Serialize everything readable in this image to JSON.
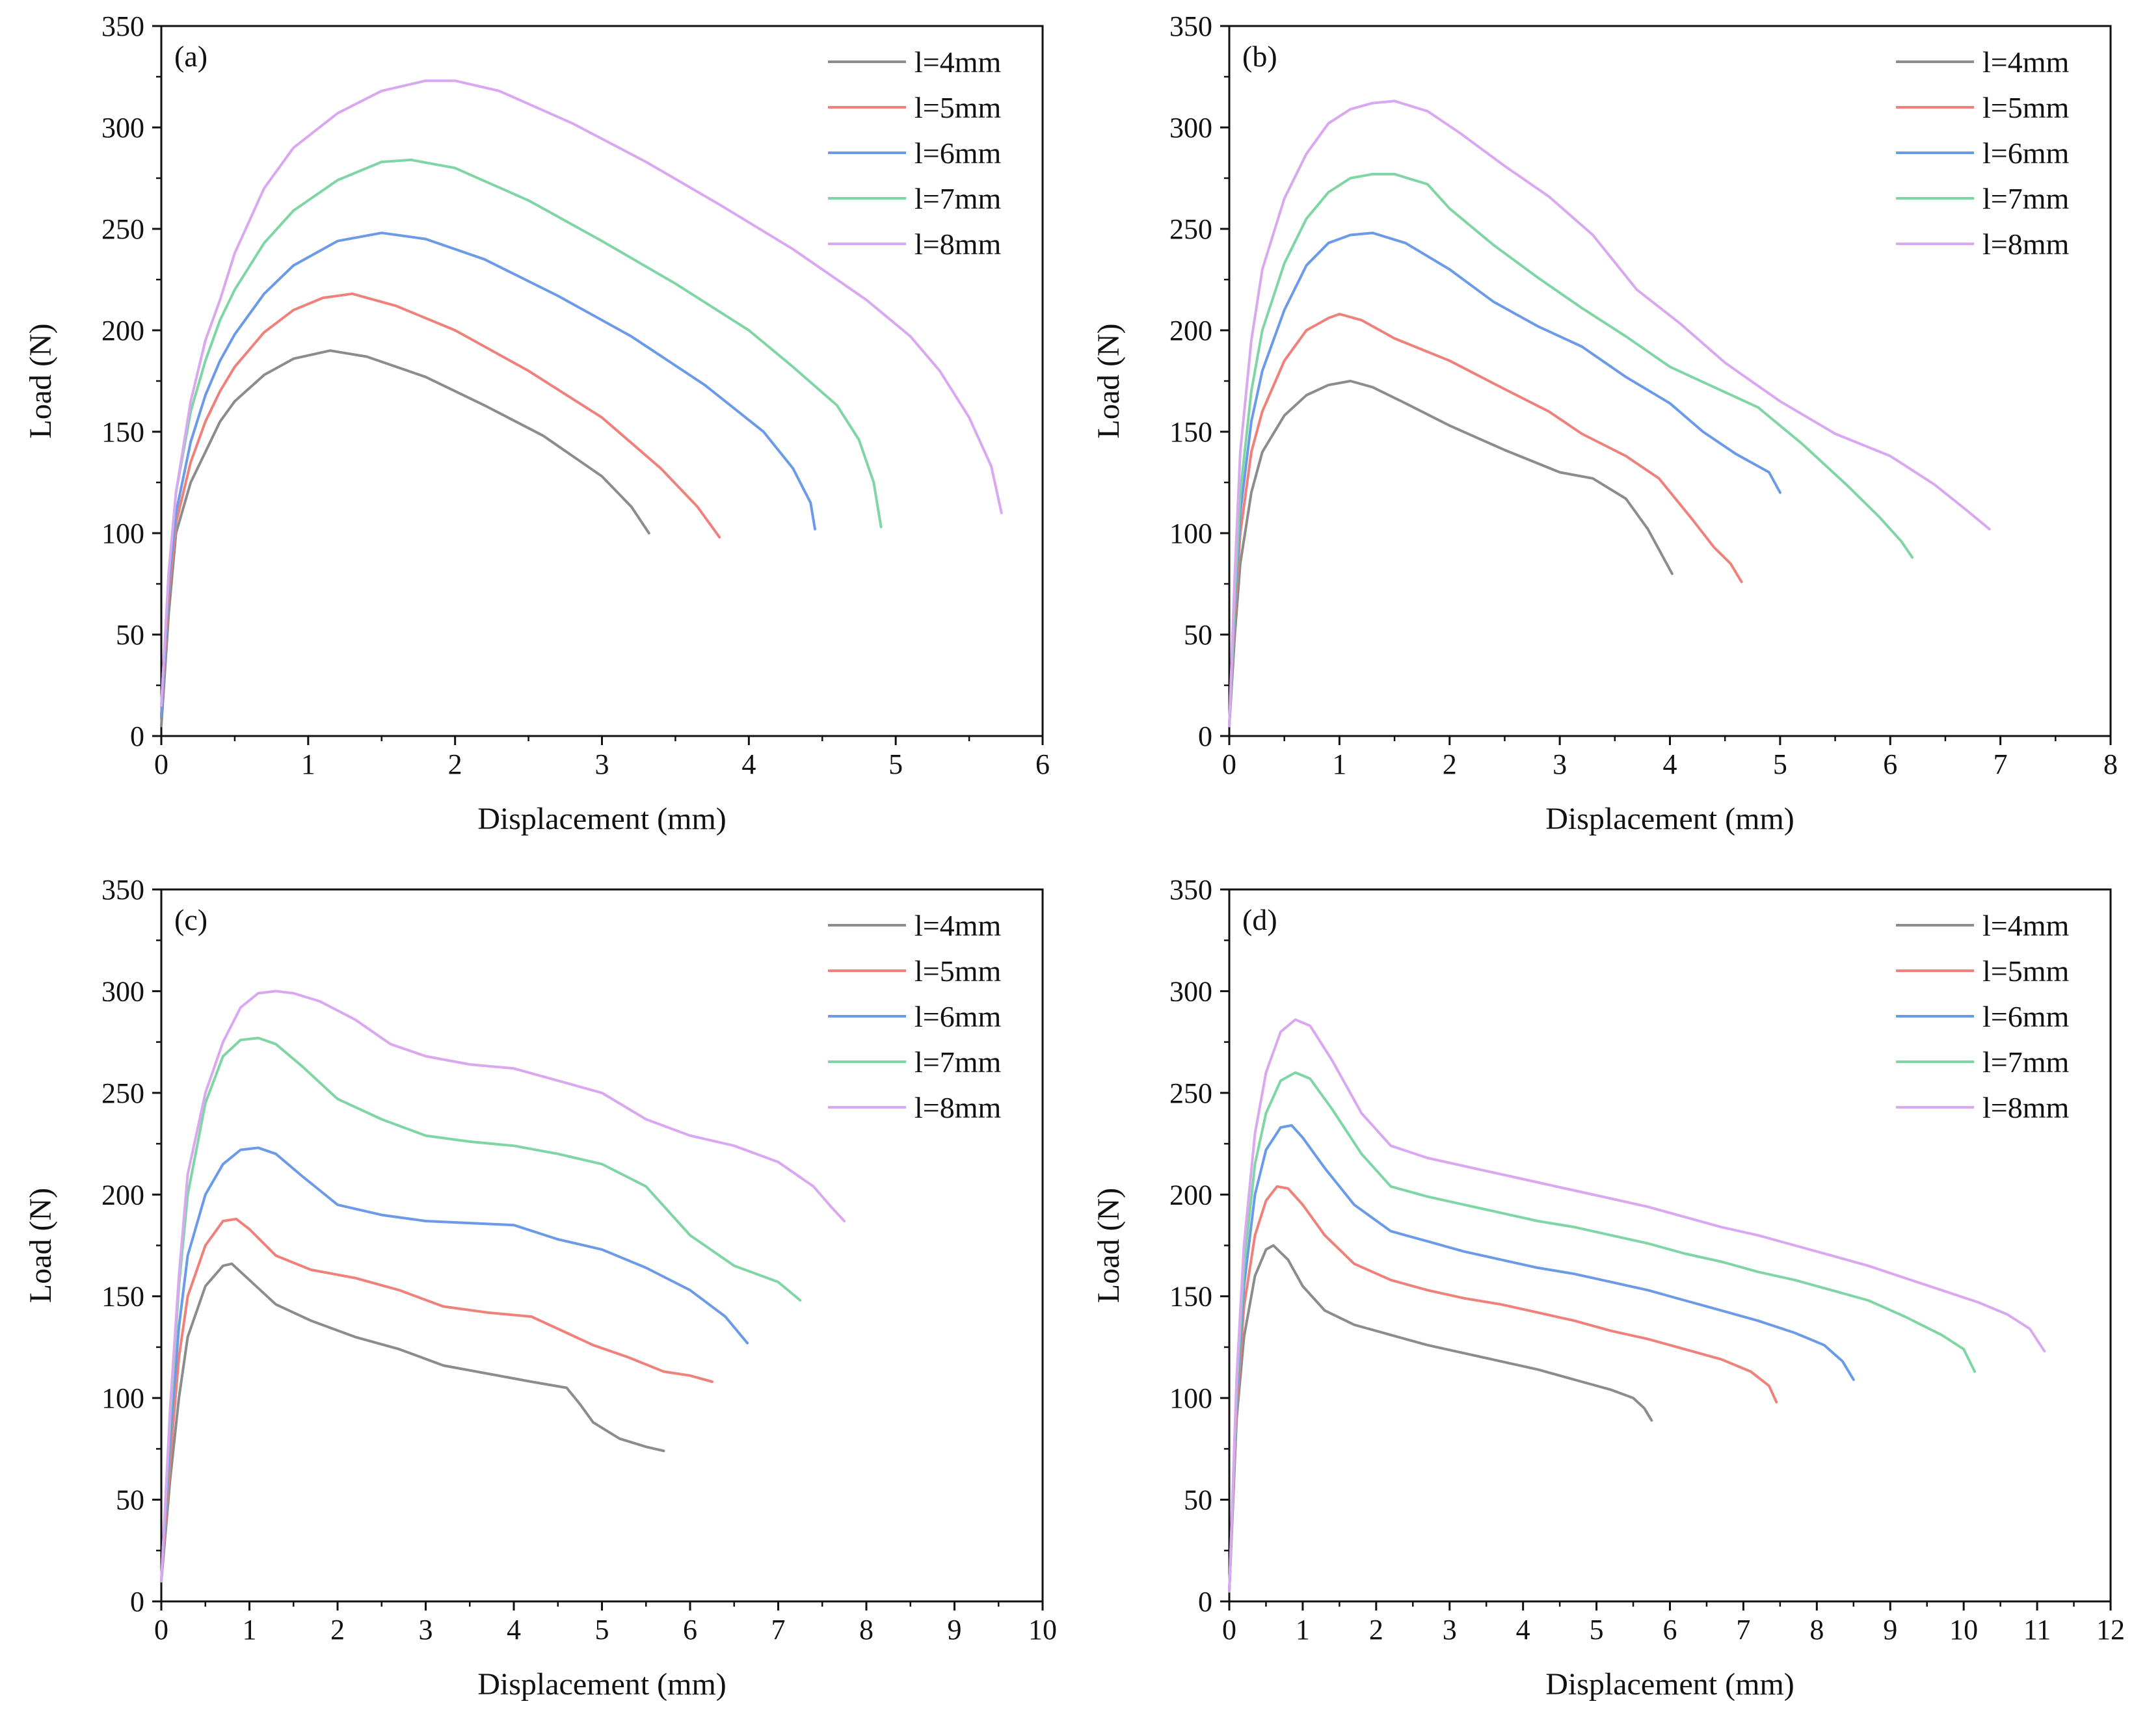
{
  "legend_entries": [
    "l=4mm",
    "l=5mm",
    "l=6mm",
    "l=7mm",
    "l=8mm"
  ],
  "colors": {
    "l=4mm": "#8c8c8c",
    "l=5mm": "#f0807a",
    "l=6mm": "#6a9ae8",
    "l=7mm": "#7fd6a4",
    "l=8mm": "#d9a8f0"
  },
  "chart_data": [
    {
      "type": "line",
      "panel_label": "(a)",
      "xlabel": "Displacement (mm)",
      "ylabel": "Load (N)",
      "xlim": [
        0,
        6
      ],
      "ylim": [
        0,
        350
      ],
      "xticks": [
        0,
        1,
        2,
        3,
        4,
        5,
        6
      ],
      "yticks": [
        0,
        50,
        100,
        150,
        200,
        250,
        300,
        350
      ],
      "legend_position": "top-right",
      "grid": false,
      "series": [
        {
          "name": "l=4mm",
          "x": [
            0,
            0.05,
            0.1,
            0.2,
            0.3,
            0.4,
            0.5,
            0.7,
            0.9,
            1.15,
            1.4,
            1.8,
            2.2,
            2.6,
            3.0,
            3.2,
            3.32
          ],
          "y": [
            5,
            60,
            100,
            125,
            140,
            155,
            165,
            178,
            186,
            190,
            187,
            177,
            163,
            148,
            128,
            113,
            100
          ]
        },
        {
          "name": "l=5mm",
          "x": [
            0,
            0.05,
            0.1,
            0.2,
            0.3,
            0.4,
            0.5,
            0.7,
            0.9,
            1.1,
            1.3,
            1.6,
            2.0,
            2.5,
            3.0,
            3.4,
            3.65,
            3.8
          ],
          "y": [
            10,
            70,
            105,
            135,
            155,
            170,
            182,
            199,
            210,
            216,
            218,
            212,
            200,
            180,
            157,
            132,
            113,
            98
          ]
        },
        {
          "name": "l=6mm",
          "x": [
            0,
            0.05,
            0.1,
            0.2,
            0.3,
            0.4,
            0.5,
            0.7,
            0.9,
            1.2,
            1.5,
            1.8,
            2.2,
            2.7,
            3.2,
            3.7,
            4.1,
            4.3,
            4.42,
            4.45
          ],
          "y": [
            10,
            75,
            110,
            145,
            168,
            185,
            198,
            218,
            232,
            244,
            248,
            245,
            235,
            217,
            197,
            173,
            150,
            132,
            115,
            102
          ]
        },
        {
          "name": "l=7mm",
          "x": [
            0,
            0.05,
            0.1,
            0.2,
            0.3,
            0.4,
            0.5,
            0.7,
            0.9,
            1.2,
            1.5,
            1.7,
            2.0,
            2.5,
            3.0,
            3.5,
            4.0,
            4.3,
            4.6,
            4.75,
            4.85,
            4.9
          ],
          "y": [
            15,
            80,
            120,
            160,
            185,
            205,
            220,
            243,
            259,
            274,
            283,
            284,
            280,
            264,
            244,
            223,
            200,
            182,
            163,
            146,
            125,
            103
          ]
        },
        {
          "name": "l=8mm",
          "x": [
            0,
            0.05,
            0.1,
            0.2,
            0.3,
            0.4,
            0.5,
            0.7,
            0.9,
            1.2,
            1.5,
            1.8,
            2.0,
            2.3,
            2.8,
            3.3,
            3.8,
            4.3,
            4.8,
            5.1,
            5.3,
            5.5,
            5.65,
            5.72
          ],
          "y": [
            15,
            80,
            120,
            165,
            195,
            215,
            238,
            270,
            290,
            307,
            318,
            323,
            323,
            318,
            302,
            283,
            262,
            240,
            215,
            197,
            180,
            157,
            133,
            110
          ]
        }
      ]
    },
    {
      "type": "line",
      "panel_label": "(b)",
      "xlabel": "Displacement (mm)",
      "ylabel": "Load (N)",
      "xlim": [
        0,
        8
      ],
      "ylim": [
        0,
        350
      ],
      "xticks": [
        0,
        1,
        2,
        3,
        4,
        5,
        6,
        7,
        8
      ],
      "yticks": [
        0,
        50,
        100,
        150,
        200,
        250,
        300,
        350
      ],
      "legend_position": "top-right",
      "grid": false,
      "series": [
        {
          "name": "l=4mm",
          "x": [
            0,
            0.05,
            0.1,
            0.2,
            0.3,
            0.5,
            0.7,
            0.9,
            1.1,
            1.3,
            1.6,
            2.0,
            2.5,
            3.0,
            3.3,
            3.6,
            3.8,
            3.95,
            4.02
          ],
          "y": [
            5,
            50,
            85,
            120,
            140,
            158,
            168,
            173,
            175,
            172,
            164,
            153,
            141,
            130,
            127,
            117,
            102,
            87,
            80
          ]
        },
        {
          "name": "l=5mm",
          "x": [
            0,
            0.05,
            0.1,
            0.2,
            0.3,
            0.5,
            0.7,
            0.9,
            1.0,
            1.2,
            1.5,
            2.0,
            2.5,
            2.9,
            3.2,
            3.6,
            3.9,
            4.2,
            4.4,
            4.55,
            4.65
          ],
          "y": [
            5,
            60,
            100,
            140,
            160,
            185,
            200,
            206,
            208,
            205,
            196,
            185,
            171,
            160,
            149,
            138,
            127,
            107,
            93,
            85,
            76
          ]
        },
        {
          "name": "l=6mm",
          "x": [
            0,
            0.05,
            0.1,
            0.2,
            0.3,
            0.5,
            0.7,
            0.9,
            1.1,
            1.3,
            1.6,
            2.0,
            2.4,
            2.8,
            3.2,
            3.6,
            4.0,
            4.3,
            4.6,
            4.9,
            5.0
          ],
          "y": [
            5,
            65,
            110,
            155,
            180,
            210,
            232,
            243,
            247,
            248,
            243,
            230,
            214,
            202,
            192,
            177,
            164,
            150,
            139,
            130,
            120
          ]
        },
        {
          "name": "l=7mm",
          "x": [
            0,
            0.05,
            0.1,
            0.2,
            0.3,
            0.5,
            0.7,
            0.9,
            1.1,
            1.3,
            1.5,
            1.8,
            2.0,
            2.4,
            2.8,
            3.2,
            3.6,
            4.0,
            4.4,
            4.8,
            5.2,
            5.6,
            5.9,
            6.1,
            6.2
          ],
          "y": [
            5,
            70,
            120,
            170,
            200,
            233,
            255,
            268,
            275,
            277,
            277,
            272,
            260,
            242,
            226,
            211,
            197,
            182,
            172,
            162,
            144,
            124,
            108,
            96,
            88
          ]
        },
        {
          "name": "l=8mm",
          "x": [
            0,
            0.05,
            0.1,
            0.2,
            0.3,
            0.5,
            0.7,
            0.9,
            1.1,
            1.3,
            1.5,
            1.8,
            2.1,
            2.5,
            2.9,
            3.3,
            3.7,
            4.1,
            4.5,
            5.0,
            5.5,
            6.0,
            6.4,
            6.7,
            6.9
          ],
          "y": [
            5,
            80,
            140,
            195,
            230,
            265,
            287,
            302,
            309,
            312,
            313,
            308,
            297,
            281,
            266,
            247,
            220,
            203,
            184,
            165,
            149,
            138,
            124,
            111,
            102
          ]
        }
      ]
    },
    {
      "type": "line",
      "panel_label": "(c)",
      "xlabel": "Displacement (mm)",
      "ylabel": "Load (N)",
      "xlim": [
        0,
        10
      ],
      "ylim": [
        0,
        350
      ],
      "xticks": [
        0,
        1,
        2,
        3,
        4,
        5,
        6,
        7,
        8,
        9,
        10
      ],
      "yticks": [
        0,
        50,
        100,
        150,
        200,
        250,
        300,
        350
      ],
      "legend_position": "top-right",
      "grid": false,
      "series": [
        {
          "name": "l=4mm",
          "x": [
            0,
            0.1,
            0.2,
            0.3,
            0.5,
            0.7,
            0.8,
            1.0,
            1.3,
            1.7,
            2.2,
            2.7,
            3.2,
            3.7,
            4.2,
            4.6,
            4.75,
            4.9,
            5.2,
            5.5,
            5.7
          ],
          "y": [
            10,
            60,
            100,
            130,
            155,
            165,
            166,
            158,
            146,
            138,
            130,
            124,
            116,
            112,
            108,
            105,
            97,
            88,
            80,
            76,
            74
          ]
        },
        {
          "name": "l=5mm",
          "x": [
            0,
            0.1,
            0.2,
            0.3,
            0.5,
            0.7,
            0.85,
            1.0,
            1.3,
            1.7,
            2.2,
            2.7,
            3.2,
            3.7,
            4.2,
            4.6,
            4.9,
            5.3,
            5.7,
            6.0,
            6.25
          ],
          "y": [
            10,
            70,
            120,
            150,
            175,
            187,
            188,
            183,
            170,
            163,
            159,
            153,
            145,
            142,
            140,
            132,
            126,
            120,
            113,
            111,
            108
          ]
        },
        {
          "name": "l=6mm",
          "x": [
            0,
            0.1,
            0.2,
            0.3,
            0.5,
            0.7,
            0.9,
            1.1,
            1.3,
            1.6,
            2.0,
            2.5,
            3.0,
            3.5,
            4.0,
            4.5,
            5.0,
            5.5,
            6.0,
            6.4,
            6.65
          ],
          "y": [
            10,
            80,
            135,
            170,
            200,
            215,
            222,
            223,
            220,
            209,
            195,
            190,
            187,
            186,
            185,
            178,
            173,
            164,
            153,
            140,
            127
          ]
        },
        {
          "name": "l=7mm",
          "x": [
            0,
            0.1,
            0.2,
            0.3,
            0.5,
            0.7,
            0.9,
            1.1,
            1.3,
            1.6,
            2.0,
            2.5,
            3.0,
            3.5,
            4.0,
            4.5,
            5.0,
            5.5,
            6.0,
            6.5,
            7.0,
            7.25
          ],
          "y": [
            10,
            90,
            155,
            200,
            245,
            268,
            276,
            277,
            274,
            263,
            247,
            237,
            229,
            226,
            224,
            220,
            215,
            204,
            180,
            165,
            157,
            148
          ]
        },
        {
          "name": "l=8mm",
          "x": [
            0,
            0.1,
            0.2,
            0.3,
            0.5,
            0.7,
            0.9,
            1.1,
            1.3,
            1.5,
            1.8,
            2.2,
            2.6,
            3.0,
            3.5,
            4.0,
            4.5,
            5.0,
            5.5,
            6.0,
            6.5,
            7.0,
            7.4,
            7.6,
            7.75
          ],
          "y": [
            10,
            95,
            160,
            210,
            250,
            275,
            292,
            299,
            300,
            299,
            295,
            286,
            274,
            268,
            264,
            262,
            256,
            250,
            237,
            229,
            224,
            216,
            204,
            194,
            187
          ]
        }
      ]
    },
    {
      "type": "line",
      "panel_label": "(d)",
      "xlabel": "Displacement (mm)",
      "ylabel": "Load (N)",
      "xlim": [
        0,
        12
      ],
      "ylim": [
        0,
        350
      ],
      "xticks": [
        0,
        1,
        2,
        3,
        4,
        5,
        6,
        7,
        8,
        9,
        10,
        11,
        12
      ],
      "yticks": [
        0,
        50,
        100,
        150,
        200,
        250,
        300,
        350
      ],
      "legend_position": "top-right",
      "grid": false,
      "series": [
        {
          "name": "l=4mm",
          "x": [
            0,
            0.1,
            0.2,
            0.35,
            0.5,
            0.6,
            0.8,
            1.0,
            1.3,
            1.7,
            2.2,
            2.7,
            3.2,
            3.7,
            4.2,
            4.7,
            5.2,
            5.5,
            5.65,
            5.75
          ],
          "y": [
            5,
            90,
            130,
            160,
            173,
            175,
            168,
            155,
            143,
            136,
            131,
            126,
            122,
            118,
            114,
            109,
            104,
            100,
            95,
            89
          ]
        },
        {
          "name": "l=5mm",
          "x": [
            0,
            0.1,
            0.2,
            0.35,
            0.5,
            0.65,
            0.8,
            1.0,
            1.3,
            1.7,
            2.2,
            2.7,
            3.2,
            3.7,
            4.2,
            4.7,
            5.2,
            5.7,
            6.2,
            6.7,
            7.1,
            7.35,
            7.45
          ],
          "y": [
            5,
            95,
            145,
            180,
            197,
            204,
            203,
            195,
            180,
            166,
            158,
            153,
            149,
            146,
            142,
            138,
            133,
            129,
            124,
            119,
            113,
            106,
            98
          ]
        },
        {
          "name": "l=6mm",
          "x": [
            0,
            0.1,
            0.2,
            0.35,
            0.5,
            0.7,
            0.85,
            1.0,
            1.3,
            1.7,
            2.2,
            2.7,
            3.2,
            3.7,
            4.2,
            4.7,
            5.2,
            5.7,
            6.2,
            6.7,
            7.2,
            7.7,
            8.1,
            8.35,
            8.5
          ],
          "y": [
            5,
            100,
            155,
            200,
            222,
            233,
            234,
            228,
            213,
            195,
            182,
            177,
            172,
            168,
            164,
            161,
            157,
            153,
            148,
            143,
            138,
            132,
            126,
            118,
            109
          ]
        },
        {
          "name": "l=7mm",
          "x": [
            0,
            0.1,
            0.2,
            0.35,
            0.5,
            0.7,
            0.9,
            1.1,
            1.4,
            1.8,
            2.2,
            2.7,
            3.2,
            3.7,
            4.2,
            4.7,
            5.2,
            5.7,
            6.2,
            6.7,
            7.2,
            7.7,
            8.2,
            8.7,
            9.2,
            9.7,
            10.0,
            10.15
          ],
          "y": [
            5,
            105,
            165,
            215,
            240,
            256,
            260,
            257,
            242,
            220,
            204,
            199,
            195,
            191,
            187,
            184,
            180,
            176,
            171,
            167,
            162,
            158,
            153,
            148,
            140,
            131,
            124,
            113
          ]
        },
        {
          "name": "l=8mm",
          "x": [
            0,
            0.1,
            0.2,
            0.35,
            0.5,
            0.7,
            0.9,
            1.1,
            1.4,
            1.8,
            2.2,
            2.7,
            3.2,
            3.7,
            4.2,
            4.7,
            5.2,
            5.7,
            6.2,
            6.7,
            7.2,
            7.7,
            8.2,
            8.7,
            9.2,
            9.7,
            10.2,
            10.6,
            10.9,
            11.1
          ],
          "y": [
            5,
            110,
            175,
            230,
            260,
            280,
            286,
            283,
            266,
            240,
            224,
            218,
            214,
            210,
            206,
            202,
            198,
            194,
            189,
            184,
            180,
            175,
            170,
            165,
            159,
            153,
            147,
            141,
            134,
            123
          ]
        }
      ]
    }
  ]
}
